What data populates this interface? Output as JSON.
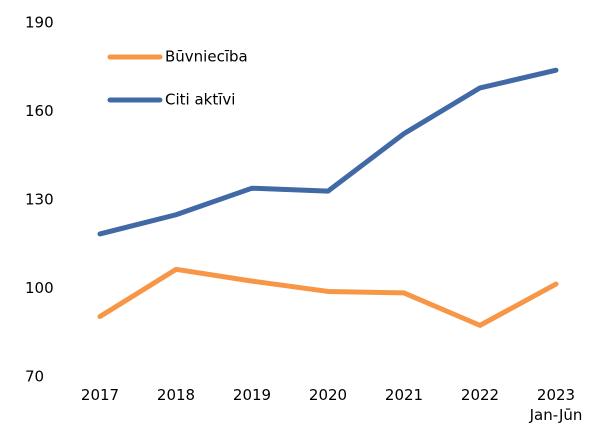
{
  "chart_data": {
    "type": "line",
    "categories": [
      "2017",
      "2018",
      "2019",
      "2020",
      "2021",
      "2022",
      "2023 Jan-Jūn"
    ],
    "series": [
      {
        "name": "Būvniecība",
        "color": "#f79646",
        "values": [
          90.5,
          106.5,
          102.5,
          99,
          98.5,
          87.5,
          101.5
        ]
      },
      {
        "name": "Citi aktīvi",
        "color": "#4069a5",
        "values": [
          118.5,
          125,
          134,
          133,
          152.5,
          168,
          174
        ]
      }
    ],
    "ylim": [
      70,
      190
    ],
    "yticks": [
      70,
      100,
      130,
      160,
      190
    ],
    "grid": false,
    "legend": "top-left"
  }
}
